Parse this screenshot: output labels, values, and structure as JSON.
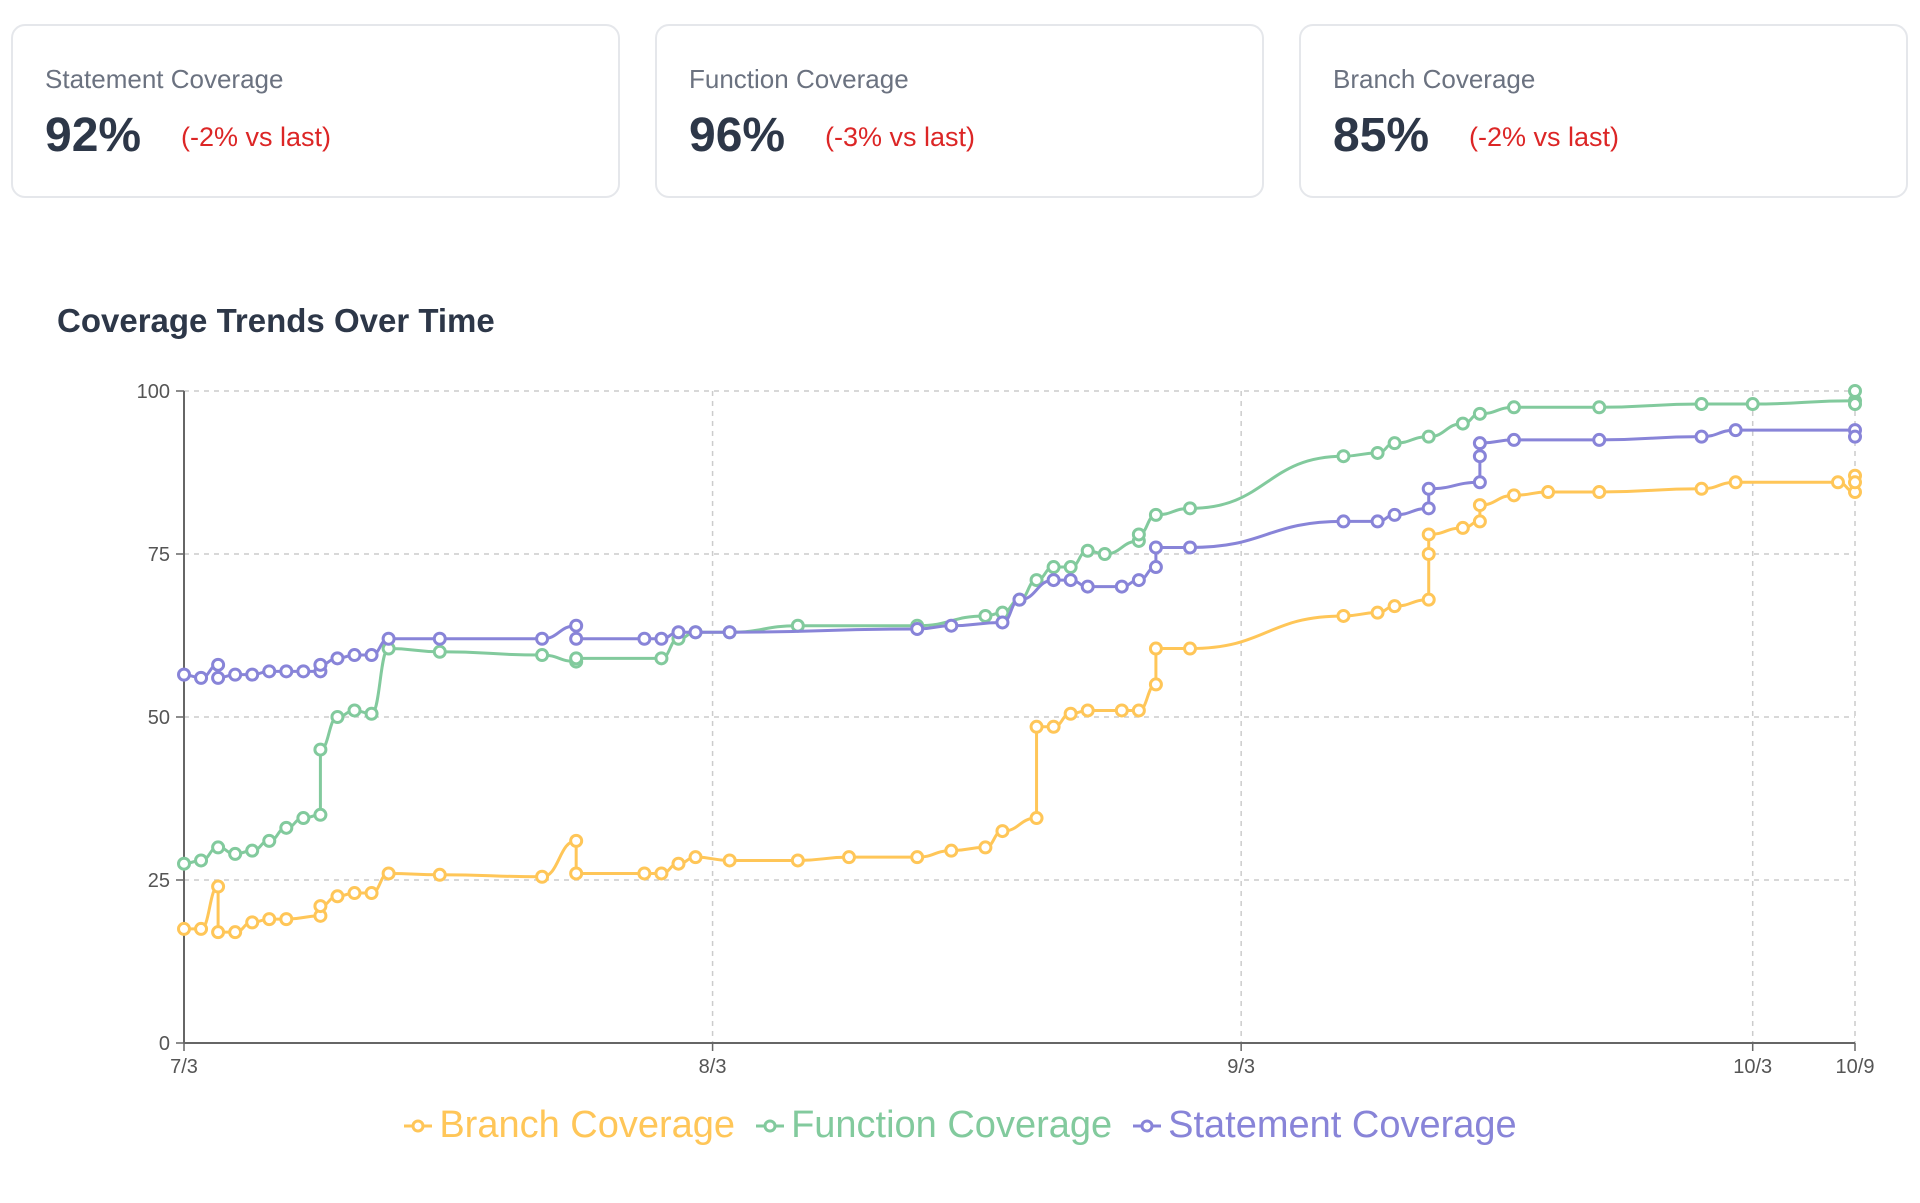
{
  "cards": [
    {
      "label": "Statement Coverage",
      "value": "92%",
      "delta": "(-2% vs last)"
    },
    {
      "label": "Function Coverage",
      "value": "96%",
      "delta": "(-3% vs last)"
    },
    {
      "label": "Branch Coverage",
      "value": "85%",
      "delta": "(-2% vs last)"
    }
  ],
  "chart_data": {
    "type": "line",
    "title": "Coverage Trends Over Time",
    "xlabel": "",
    "ylabel": "",
    "ylim": [
      0,
      100
    ],
    "yticks": [
      "0",
      "25",
      "50",
      "75",
      "100"
    ],
    "xticks": [
      "7/3",
      "8/3",
      "9/3",
      "10/3",
      "10/9"
    ],
    "xlim": [
      "7/3",
      "10/9"
    ],
    "grid": true,
    "legend": "bottom",
    "series": [
      {
        "name": "Branch Coverage",
        "color": "#ffc658",
        "points": [
          [
            "7/3",
            17.5
          ],
          [
            "7/4",
            17.5
          ],
          [
            "7/5",
            24
          ],
          [
            "7/5",
            17
          ],
          [
            "7/6",
            17
          ],
          [
            "7/7",
            18.5
          ],
          [
            "7/8",
            19
          ],
          [
            "7/9",
            19
          ],
          [
            "7/11",
            19.5
          ],
          [
            "7/11",
            21
          ],
          [
            "7/12",
            22.5
          ],
          [
            "7/13",
            23
          ],
          [
            "7/14",
            23
          ],
          [
            "7/15",
            26
          ],
          [
            "7/18",
            25.8
          ],
          [
            "7/24",
            25.5
          ],
          [
            "7/26",
            31
          ],
          [
            "7/26",
            26
          ],
          [
            "7/30",
            26
          ],
          [
            "7/31",
            26
          ],
          [
            "8/1",
            27.5
          ],
          [
            "8/2",
            28.5
          ],
          [
            "8/4",
            28
          ],
          [
            "8/8",
            28
          ],
          [
            "8/11",
            28.5
          ],
          [
            "8/15",
            28.5
          ],
          [
            "8/17",
            29.5
          ],
          [
            "8/19",
            30
          ],
          [
            "8/20",
            32.5
          ],
          [
            "8/22",
            34.5
          ],
          [
            "8/22",
            48.5
          ],
          [
            "8/23",
            48.5
          ],
          [
            "8/24",
            50.5
          ],
          [
            "8/25",
            51
          ],
          [
            "8/27",
            51
          ],
          [
            "8/28",
            51
          ],
          [
            "8/29",
            55
          ],
          [
            "8/29",
            60.5
          ],
          [
            "8/31",
            60.5
          ],
          [
            "9/9",
            65.5
          ],
          [
            "9/11",
            66
          ],
          [
            "9/12",
            67
          ],
          [
            "9/14",
            68
          ],
          [
            "9/14",
            75
          ],
          [
            "9/14",
            78
          ],
          [
            "9/16",
            79
          ],
          [
            "9/17",
            80
          ],
          [
            "9/17",
            82.5
          ],
          [
            "9/19",
            84
          ],
          [
            "9/21",
            84.5
          ],
          [
            "9/24",
            84.5
          ],
          [
            "9/30",
            85
          ],
          [
            "10/2",
            86
          ],
          [
            "10/8",
            86
          ],
          [
            "10/9",
            84.5
          ],
          [
            "10/9",
            87
          ],
          [
            "10/9",
            86
          ]
        ]
      },
      {
        "name": "Function Coverage",
        "color": "#82ca9d",
        "points": [
          [
            "7/3",
            27.5
          ],
          [
            "7/4",
            28
          ],
          [
            "7/5",
            30
          ],
          [
            "7/6",
            29
          ],
          [
            "7/7",
            29.5
          ],
          [
            "7/8",
            31
          ],
          [
            "7/9",
            33
          ],
          [
            "7/10",
            34.5
          ],
          [
            "7/11",
            35
          ],
          [
            "7/11",
            45
          ],
          [
            "7/12",
            50
          ],
          [
            "7/13",
            51
          ],
          [
            "7/14",
            50.5
          ],
          [
            "7/15",
            60.5
          ],
          [
            "7/18",
            60
          ],
          [
            "7/24",
            59.5
          ],
          [
            "7/26",
            58.5
          ],
          [
            "7/26",
            59
          ],
          [
            "7/31",
            59
          ],
          [
            "8/1",
            62
          ],
          [
            "8/2",
            63
          ],
          [
            "8/4",
            63
          ],
          [
            "8/8",
            64
          ],
          [
            "8/15",
            64
          ],
          [
            "8/19",
            65.5
          ],
          [
            "8/20",
            66
          ],
          [
            "8/21",
            68
          ],
          [
            "8/22",
            71
          ],
          [
            "8/23",
            73
          ],
          [
            "8/24",
            73
          ],
          [
            "8/25",
            75.5
          ],
          [
            "8/26",
            75
          ],
          [
            "8/28",
            77
          ],
          [
            "8/28",
            78
          ],
          [
            "8/29",
            81
          ],
          [
            "8/31",
            82
          ],
          [
            "9/9",
            90
          ],
          [
            "9/11",
            90.5
          ],
          [
            "9/12",
            92
          ],
          [
            "9/14",
            93
          ],
          [
            "9/16",
            95
          ],
          [
            "9/17",
            96.5
          ],
          [
            "9/19",
            97.5
          ],
          [
            "9/24",
            97.5
          ],
          [
            "9/30",
            98
          ],
          [
            "10/3",
            98
          ],
          [
            "10/9",
            98.5
          ],
          [
            "10/9",
            100
          ],
          [
            "10/9",
            98
          ]
        ]
      },
      {
        "name": "Statement Coverage",
        "color": "#8884d8",
        "points": [
          [
            "7/3",
            56.5
          ],
          [
            "7/4",
            56
          ],
          [
            "7/5",
            58
          ],
          [
            "7/5",
            56
          ],
          [
            "7/6",
            56.5
          ],
          [
            "7/7",
            56.5
          ],
          [
            "7/8",
            57
          ],
          [
            "7/9",
            57
          ],
          [
            "7/10",
            57
          ],
          [
            "7/11",
            57
          ],
          [
            "7/11",
            58
          ],
          [
            "7/12",
            59
          ],
          [
            "7/13",
            59.5
          ],
          [
            "7/14",
            59.5
          ],
          [
            "7/15",
            62
          ],
          [
            "7/18",
            62
          ],
          [
            "7/24",
            62
          ],
          [
            "7/26",
            64
          ],
          [
            "7/26",
            62
          ],
          [
            "7/30",
            62
          ],
          [
            "7/31",
            62
          ],
          [
            "8/1",
            63
          ],
          [
            "8/2",
            63
          ],
          [
            "8/4",
            63
          ],
          [
            "8/15",
            63.5
          ],
          [
            "8/17",
            64
          ],
          [
            "8/20",
            64.5
          ],
          [
            "8/21",
            68
          ],
          [
            "8/23",
            71
          ],
          [
            "8/24",
            71
          ],
          [
            "8/25",
            70
          ],
          [
            "8/27",
            70
          ],
          [
            "8/28",
            71
          ],
          [
            "8/29",
            73
          ],
          [
            "8/29",
            76
          ],
          [
            "8/31",
            76
          ],
          [
            "9/9",
            80
          ],
          [
            "9/11",
            80
          ],
          [
            "9/12",
            81
          ],
          [
            "9/14",
            82
          ],
          [
            "9/14",
            85
          ],
          [
            "9/17",
            86
          ],
          [
            "9/17",
            90
          ],
          [
            "9/17",
            92
          ],
          [
            "9/19",
            92.5
          ],
          [
            "9/24",
            92.5
          ],
          [
            "9/30",
            93
          ],
          [
            "10/2",
            94
          ],
          [
            "10/9",
            94
          ],
          [
            "10/9",
            93
          ]
        ]
      }
    ]
  }
}
